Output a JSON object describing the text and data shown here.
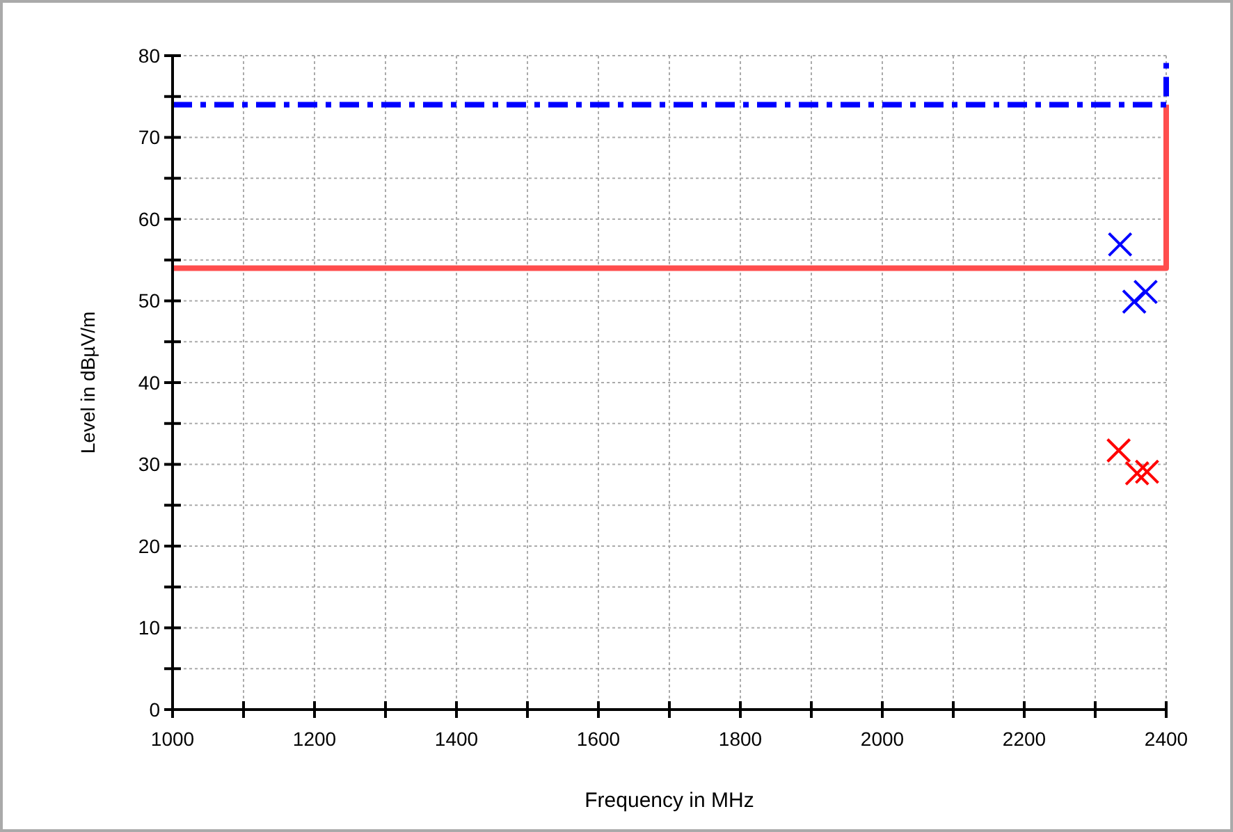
{
  "chart_data": {
    "type": "scatter",
    "xlabel": "Frequency in MHz",
    "ylabel": "Level in dBµV/m",
    "xlim": [
      1000,
      2400
    ],
    "ylim": [
      0,
      80
    ],
    "xticks": [
      1000,
      {
        "value": 1100,
        "label": null
      },
      1200,
      {
        "value": 1300,
        "label": null
      },
      1400,
      {
        "value": 1500,
        "label": null
      },
      1600,
      {
        "value": 1700,
        "label": null
      },
      1800,
      {
        "value": 1900,
        "label": null
      },
      2000,
      {
        "value": 2100,
        "label": null
      },
      2200,
      {
        "value": 2300,
        "label": null
      },
      2400
    ],
    "yticks": [
      0,
      {
        "value": 5,
        "label": null
      },
      10,
      {
        "value": 15,
        "label": null
      },
      20,
      {
        "value": 25,
        "label": null
      },
      30,
      {
        "value": 35,
        "label": null
      },
      40,
      {
        "value": 45,
        "label": null
      },
      50,
      {
        "value": 55,
        "label": null
      },
      60,
      {
        "value": 65,
        "label": null
      },
      70,
      {
        "value": 75,
        "label": null
      },
      80
    ],
    "grid": true,
    "series": [
      {
        "type": "line",
        "color": "#ff4d4d",
        "line_style": "solid",
        "marker": "none",
        "x": [
          1000,
          2400,
          2400
        ],
        "values": [
          54,
          54,
          74
        ]
      },
      {
        "type": "line",
        "color": "#0000ff",
        "line_style": "dashed",
        "marker": "none",
        "x": [
          1000,
          2400,
          2400
        ],
        "values": [
          74,
          74,
          80
        ]
      },
      {
        "color": "#0000ff",
        "marker": "cross",
        "x": [
          2335,
          2355,
          2371
        ],
        "values": [
          56.9,
          49.9,
          51.1
        ]
      },
      {
        "color": "#ff0000",
        "marker": "cross",
        "x": [
          2333,
          2359,
          2373
        ],
        "values": [
          31.7,
          28.9,
          29.1
        ]
      }
    ]
  }
}
